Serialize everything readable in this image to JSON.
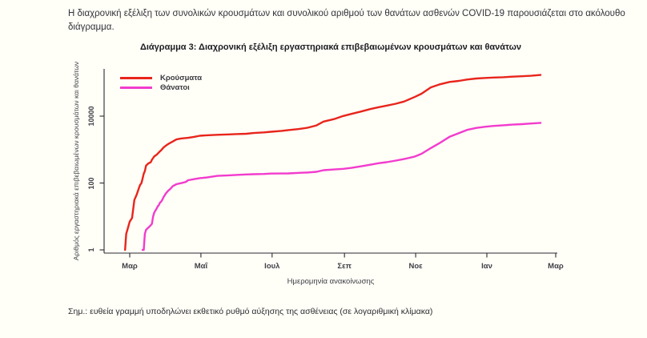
{
  "page": {
    "intro_text": "Η διαχρονική εξέλιξη των συνολικών κρουσμάτων και συνολικού αριθμού των θανάτων ασθενών COVID-19 παρουσιάζεται στο ακόλουθο διάγραμμα.",
    "note_text": "Σημ.: ευθεία γραμμή υποδηλώνει εκθετικό ρυθμό αύξησης της ασθένειας (σε λογαριθμική κλίμακα)"
  },
  "chart": {
    "title": "Διάγραμμα 3: Διαχρονική εξέλιξη εργαστηριακά επιβεβαιωμένων κρουσμάτων και θανάτων",
    "x_axis_title": "Ημερομηνία ανακοίνωσης",
    "y_axis_title": "Αριθμός εργαστηριακά επιβεβαιωμένων κρουσμάτων και θανάτων",
    "legend": [
      {
        "label": "Κρούσματα",
        "color": "#e8251c"
      },
      {
        "label": "Θάνατοι",
        "color": "#f23bce"
      }
    ]
  },
  "chart_data": {
    "type": "line",
    "y_scale": "log10",
    "x_unit": "days since 2020-03-01",
    "x_range_days": [
      -8,
      373
    ],
    "y_range": [
      1,
      300000
    ],
    "grid": false,
    "legend_position": "top-left-inside",
    "x_ticks": [
      {
        "day": 0,
        "label": "Μαρ"
      },
      {
        "day": 61,
        "label": "Μαΐ"
      },
      {
        "day": 122,
        "label": "Ιουλ"
      },
      {
        "day": 184,
        "label": "Σεπ"
      },
      {
        "day": 245,
        "label": "Νοε"
      },
      {
        "day": 306,
        "label": "Ιαν"
      },
      {
        "day": 365,
        "label": "Μαρ"
      }
    ],
    "y_ticks": [
      {
        "value": 1,
        "label": "1"
      },
      {
        "value": 100,
        "label": "100"
      },
      {
        "value": 10000,
        "label": "10000"
      }
    ],
    "series": [
      {
        "name": "Κρούσματα",
        "color": "#e8251c",
        "points": [
          [
            -4,
            1
          ],
          [
            -3,
            3
          ],
          [
            -2,
            4
          ],
          [
            0,
            7
          ],
          [
            2,
            9
          ],
          [
            4,
            31
          ],
          [
            6,
            45
          ],
          [
            8,
            73
          ],
          [
            9,
            89
          ],
          [
            10,
            99
          ],
          [
            11,
            133
          ],
          [
            12,
            190
          ],
          [
            13,
            228
          ],
          [
            14,
            331
          ],
          [
            16,
            387
          ],
          [
            18,
            418
          ],
          [
            19,
            495
          ],
          [
            21,
            624
          ],
          [
            23,
            695
          ],
          [
            25,
            821
          ],
          [
            27,
            966
          ],
          [
            29,
            1156
          ],
          [
            31,
            1314
          ],
          [
            34,
            1544
          ],
          [
            37,
            1755
          ],
          [
            40,
            2011
          ],
          [
            44,
            2145
          ],
          [
            50,
            2245
          ],
          [
            55,
            2401
          ],
          [
            60,
            2591
          ],
          [
            66,
            2678
          ],
          [
            75,
            2770
          ],
          [
            85,
            2840
          ],
          [
            91,
            2915
          ],
          [
            100,
            2980
          ],
          [
            106,
            3121
          ],
          [
            115,
            3256
          ],
          [
            121,
            3409
          ],
          [
            130,
            3622
          ],
          [
            136,
            3826
          ],
          [
            145,
            4110
          ],
          [
            152,
            4477
          ],
          [
            160,
            5270
          ],
          [
            166,
            6858
          ],
          [
            175,
            8138
          ],
          [
            183,
            10134
          ],
          [
            190,
            11663
          ],
          [
            198,
            13730
          ],
          [
            206,
            16286
          ],
          [
            213,
            18475
          ],
          [
            220,
            20541
          ],
          [
            228,
            23495
          ],
          [
            235,
            27334
          ],
          [
            244,
            37196
          ],
          [
            250,
            46892
          ],
          [
            258,
            72510
          ],
          [
            265,
            87812
          ],
          [
            274,
            105271
          ],
          [
            282,
            113185
          ],
          [
            289,
            124534
          ],
          [
            297,
            133841
          ],
          [
            305,
            138850
          ],
          [
            312,
            142777
          ],
          [
            320,
            146020
          ],
          [
            328,
            151980
          ],
          [
            336,
            155678
          ],
          [
            344,
            161382
          ],
          [
            352,
            170244
          ]
        ]
      },
      {
        "name": "Θάνατοι",
        "color": "#f23bce",
        "points": [
          [
            11,
            1
          ],
          [
            12,
            1
          ],
          [
            13,
            3
          ],
          [
            14,
            4
          ],
          [
            17,
            5
          ],
          [
            19,
            6
          ],
          [
            20,
            10
          ],
          [
            21,
            13
          ],
          [
            22,
            15
          ],
          [
            23,
            17
          ],
          [
            24,
            20
          ],
          [
            25,
            22
          ],
          [
            26,
            26
          ],
          [
            27,
            28
          ],
          [
            28,
            32
          ],
          [
            29,
            38
          ],
          [
            30,
            43
          ],
          [
            31,
            49
          ],
          [
            33,
            59
          ],
          [
            35,
            68
          ],
          [
            37,
            81
          ],
          [
            40,
            92
          ],
          [
            43,
            98
          ],
          [
            45,
            101
          ],
          [
            48,
            108
          ],
          [
            50,
            121
          ],
          [
            55,
            130
          ],
          [
            60,
            140
          ],
          [
            66,
            146
          ],
          [
            75,
            163
          ],
          [
            85,
            170
          ],
          [
            91,
            175
          ],
          [
            100,
            180
          ],
          [
            106,
            183
          ],
          [
            115,
            187
          ],
          [
            121,
            192
          ],
          [
            130,
            193
          ],
          [
            136,
            194
          ],
          [
            145,
            201
          ],
          [
            152,
            206
          ],
          [
            160,
            216
          ],
          [
            166,
            242
          ],
          [
            175,
            254
          ],
          [
            183,
            266
          ],
          [
            190,
            284
          ],
          [
            198,
            315
          ],
          [
            206,
            352
          ],
          [
            213,
            391
          ],
          [
            220,
            420
          ],
          [
            228,
            469
          ],
          [
            235,
            520
          ],
          [
            244,
            615
          ],
          [
            250,
            749
          ],
          [
            258,
            1106
          ],
          [
            265,
            1527
          ],
          [
            274,
            2406
          ],
          [
            282,
            3099
          ],
          [
            289,
            3870
          ],
          [
            297,
            4457
          ],
          [
            305,
            4838
          ],
          [
            312,
            5099
          ],
          [
            320,
            5329
          ],
          [
            328,
            5570
          ],
          [
            336,
            5764
          ],
          [
            344,
            6017
          ],
          [
            352,
            6300
          ]
        ]
      }
    ]
  }
}
